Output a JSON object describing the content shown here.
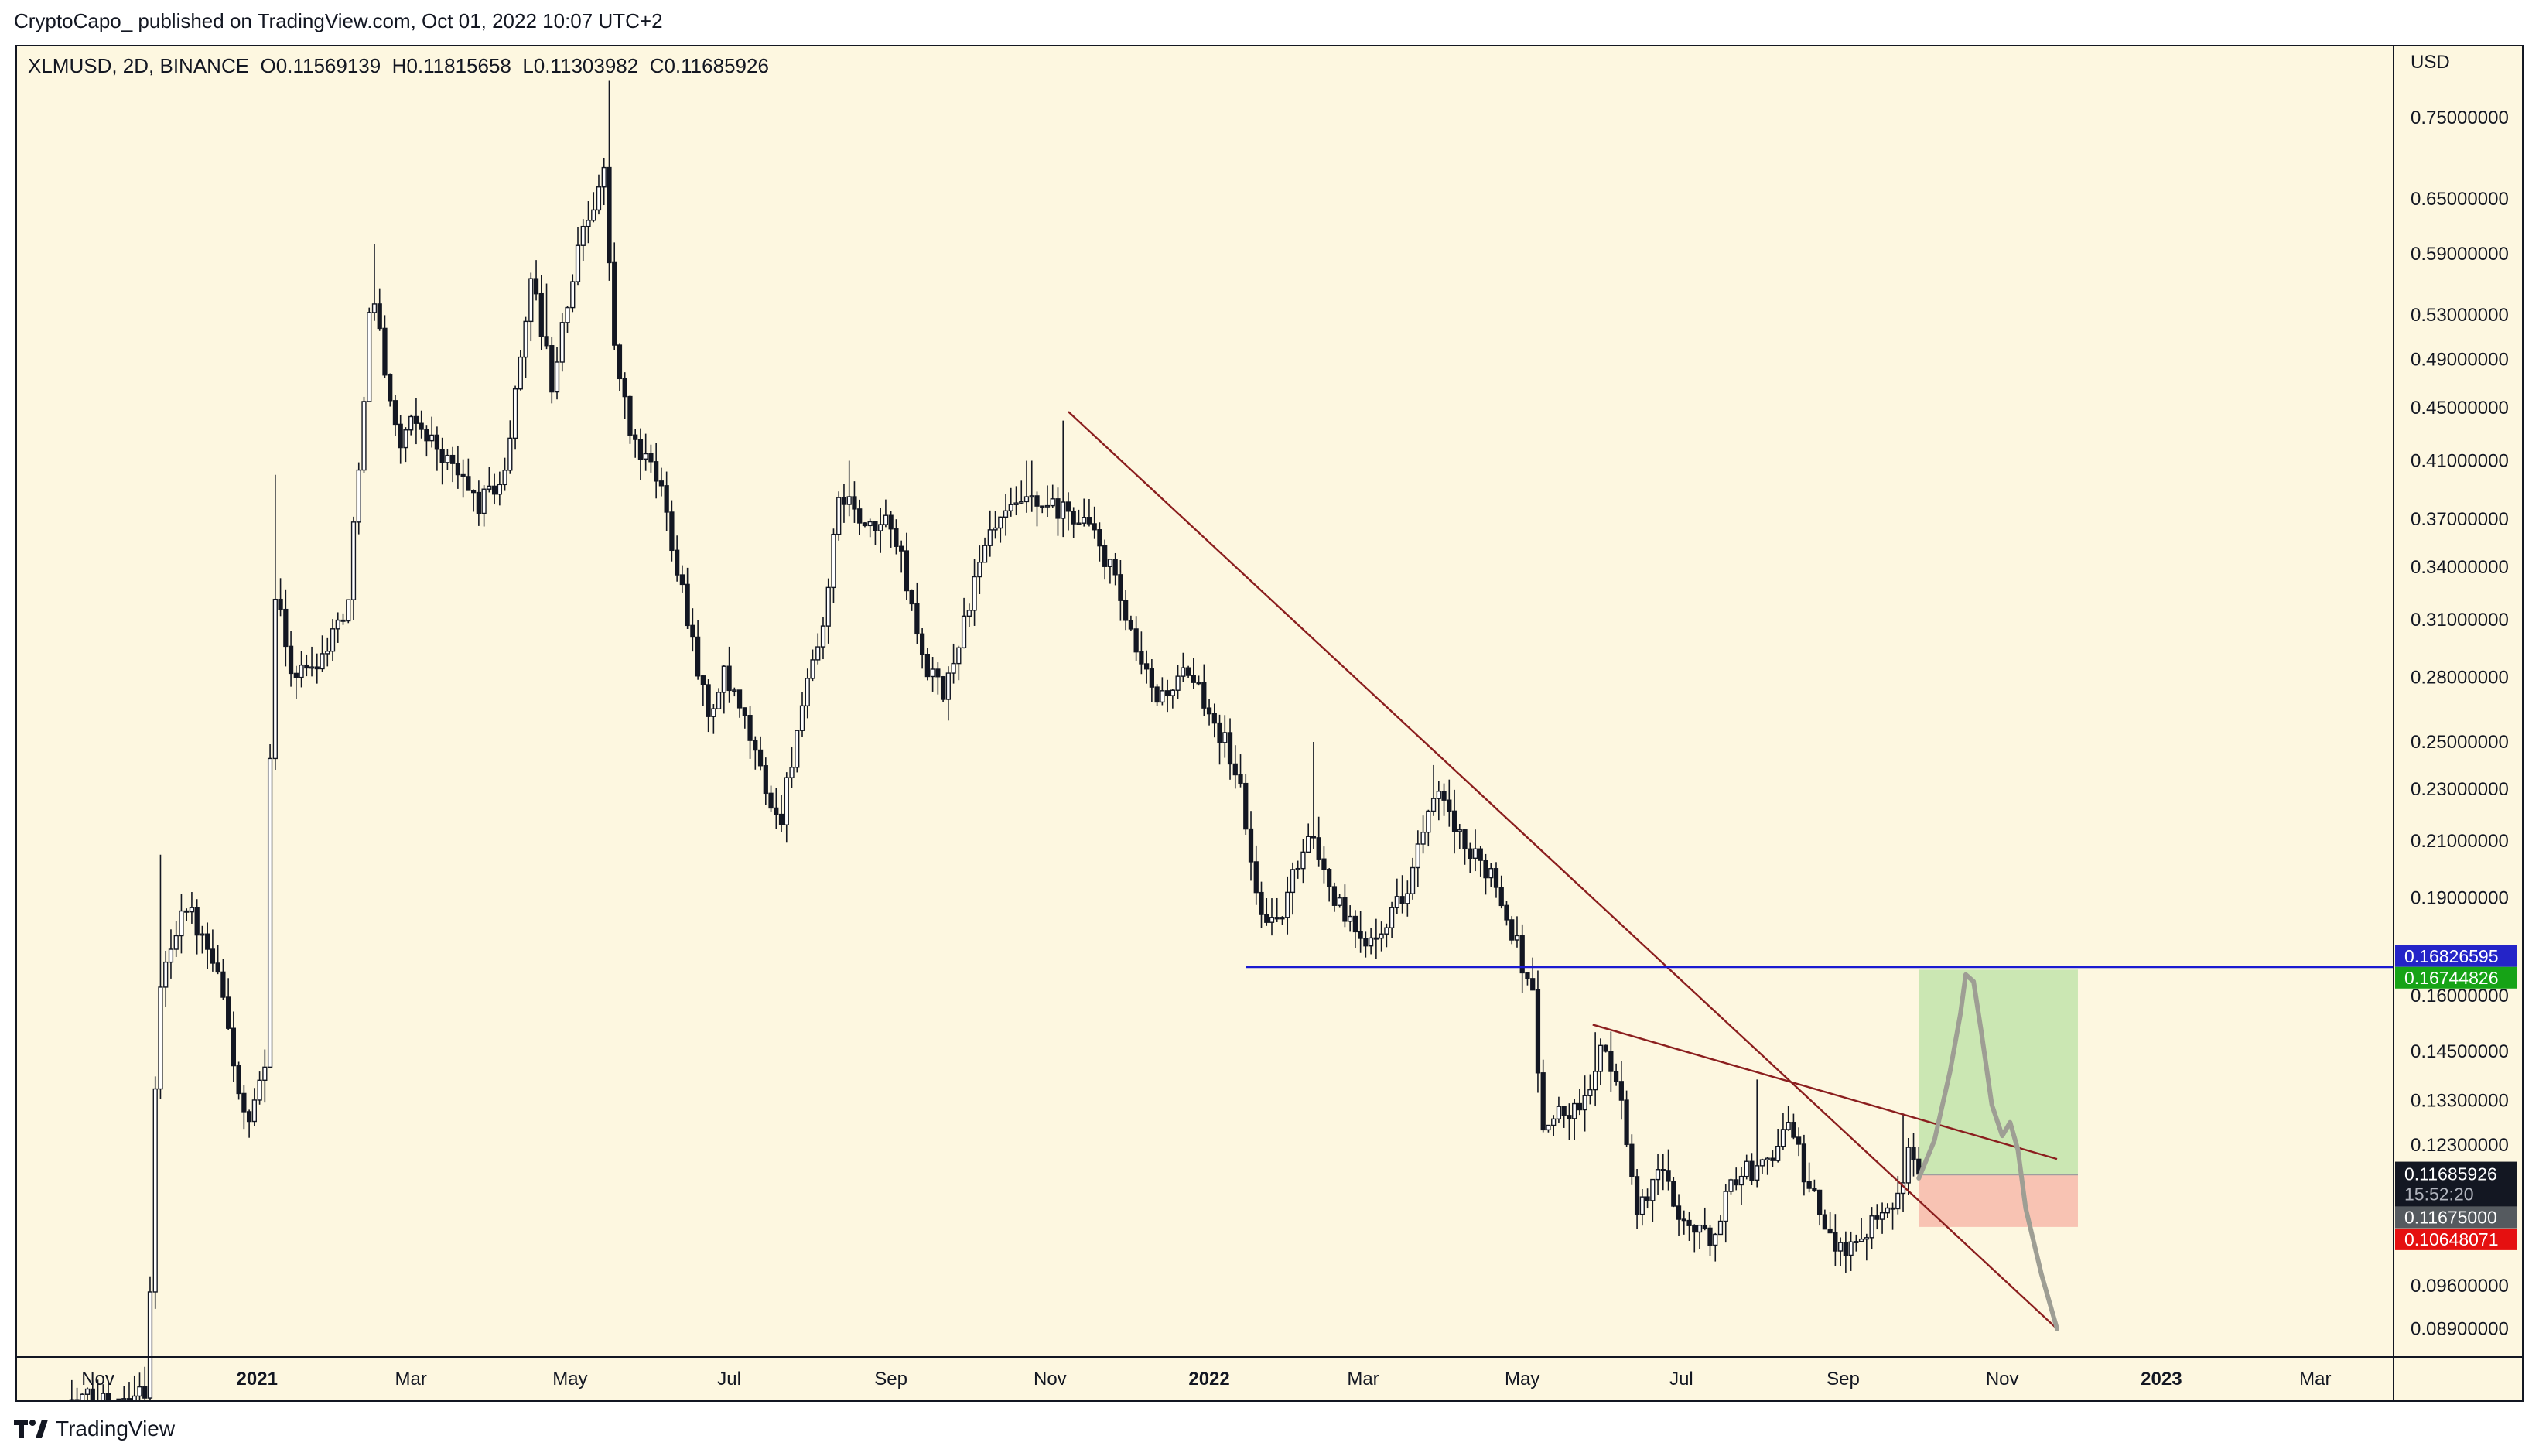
{
  "header": {
    "published_text": "CryptoCapo_ published on TradingView.com, Oct 01, 2022 10:07 UTC+2"
  },
  "symbol": {
    "name": "XLMUSD, 2D, BINANCE",
    "open_label": "O",
    "open": "0.11569139",
    "high_label": "H",
    "high": "0.11815658",
    "low_label": "L",
    "low": "0.11303982",
    "close_label": "C",
    "close": "0.11685926"
  },
  "footer": {
    "brand": "TradingView"
  },
  "colors": {
    "background": "#fdf7e0",
    "candle_up": "#ffffff",
    "candle_down": "#131722",
    "trendline": "#8b1e1e",
    "support": "#1a1ad1",
    "target_zone": "#c8e6b0",
    "stop_zone": "#f8c0b0",
    "projection": "#9e9e94"
  },
  "chart_data": {
    "type": "candlestick",
    "interval": "2D",
    "y_scale": "log",
    "y_unit_label": "USD",
    "ylim": [
      0.0847,
      0.85
    ],
    "xlim": [
      "2020-10-01",
      "2023-03-31"
    ],
    "y_ticks": [
      "0.75000000",
      "0.65000000",
      "0.59000000",
      "0.53000000",
      "0.49000000",
      "0.45000000",
      "0.41000000",
      "0.37000000",
      "0.34000000",
      "0.31000000",
      "0.28000000",
      "0.25000000",
      "0.23000000",
      "0.21000000",
      "0.19000000",
      "0.16000000",
      "0.14500000",
      "0.13300000",
      "0.12300000",
      "0.09600000",
      "0.08900000"
    ],
    "x_ticks": [
      {
        "label": "Nov",
        "date": "2020-11-01"
      },
      {
        "label": "2021",
        "date": "2021-01-01"
      },
      {
        "label": "Mar",
        "date": "2021-03-01"
      },
      {
        "label": "May",
        "date": "2021-05-01"
      },
      {
        "label": "Jul",
        "date": "2021-07-01"
      },
      {
        "label": "Sep",
        "date": "2021-09-01"
      },
      {
        "label": "Nov",
        "date": "2021-11-01"
      },
      {
        "label": "2022",
        "date": "2022-01-01"
      },
      {
        "label": "Mar",
        "date": "2022-03-01"
      },
      {
        "label": "May",
        "date": "2022-05-01"
      },
      {
        "label": "Jul",
        "date": "2022-07-01"
      },
      {
        "label": "Sep",
        "date": "2022-09-01"
      },
      {
        "label": "Nov",
        "date": "2022-11-01"
      },
      {
        "label": "2023",
        "date": "2023-01-01"
      },
      {
        "label": "Mar",
        "date": "2023-03-01"
      }
    ],
    "close_path": [
      [
        "2020-10-20",
        0.078
      ],
      [
        "2020-11-20",
        0.08
      ],
      [
        "2020-11-24",
        0.16
      ],
      [
        "2020-12-04",
        0.19
      ],
      [
        "2020-12-18",
        0.163
      ],
      [
        "2020-12-28",
        0.125
      ],
      [
        "2021-01-04",
        0.14
      ],
      [
        "2021-01-07",
        0.33
      ],
      [
        "2021-01-15",
        0.28
      ],
      [
        "2021-01-25",
        0.29
      ],
      [
        "2021-02-05",
        0.32
      ],
      [
        "2021-02-14",
        0.56
      ],
      [
        "2021-02-24",
        0.42
      ],
      [
        "2021-03-03",
        0.44
      ],
      [
        "2021-03-15",
        0.41
      ],
      [
        "2021-03-27",
        0.38
      ],
      [
        "2021-04-06",
        0.4
      ],
      [
        "2021-04-16",
        0.57
      ],
      [
        "2021-04-24",
        0.47
      ],
      [
        "2021-05-06",
        0.62
      ],
      [
        "2021-05-14",
        0.68
      ],
      [
        "2021-05-18",
        0.5
      ],
      [
        "2021-05-24",
        0.43
      ],
      [
        "2021-06-05",
        0.39
      ],
      [
        "2021-06-17",
        0.3
      ],
      [
        "2021-06-23",
        0.26
      ],
      [
        "2021-06-29",
        0.28
      ],
      [
        "2021-07-08",
        0.255
      ],
      [
        "2021-07-20",
        0.215
      ],
      [
        "2021-07-26",
        0.25
      ],
      [
        "2021-08-05",
        0.3
      ],
      [
        "2021-08-13",
        0.39
      ],
      [
        "2021-08-23",
        0.36
      ],
      [
        "2021-09-01",
        0.37
      ],
      [
        "2021-09-07",
        0.33
      ],
      [
        "2021-09-13",
        0.29
      ],
      [
        "2021-09-21",
        0.27
      ],
      [
        "2021-09-29",
        0.31
      ],
      [
        "2021-10-09",
        0.36
      ],
      [
        "2021-10-21",
        0.38
      ],
      [
        "2021-11-04",
        0.375
      ],
      [
        "2021-11-14",
        0.37
      ],
      [
        "2021-11-24",
        0.34
      ],
      [
        "2021-12-04",
        0.29
      ],
      [
        "2021-12-12",
        0.27
      ],
      [
        "2021-12-22",
        0.28
      ],
      [
        "2021-12-30",
        0.27
      ],
      [
        "2022-01-07",
        0.25
      ],
      [
        "2022-01-13",
        0.23
      ],
      [
        "2022-01-19",
        0.19
      ],
      [
        "2022-01-27",
        0.18
      ],
      [
        "2022-02-08",
        0.215
      ],
      [
        "2022-02-18",
        0.19
      ],
      [
        "2022-02-28",
        0.175
      ],
      [
        "2022-03-06",
        0.18
      ],
      [
        "2022-03-16",
        0.19
      ],
      [
        "2022-03-28",
        0.225
      ],
      [
        "2022-04-01",
        0.225
      ],
      [
        "2022-04-09",
        0.205
      ],
      [
        "2022-04-19",
        0.2
      ],
      [
        "2022-04-29",
        0.175
      ],
      [
        "2022-05-05",
        0.16
      ],
      [
        "2022-05-09",
        0.125
      ],
      [
        "2022-05-13",
        0.13
      ],
      [
        "2022-05-23",
        0.13
      ],
      [
        "2022-05-31",
        0.145
      ],
      [
        "2022-06-08",
        0.135
      ],
      [
        "2022-06-14",
        0.108
      ],
      [
        "2022-06-22",
        0.118
      ],
      [
        "2022-07-02",
        0.108
      ],
      [
        "2022-07-12",
        0.104
      ],
      [
        "2022-07-22",
        0.117
      ],
      [
        "2022-08-01",
        0.118
      ],
      [
        "2022-08-11",
        0.128
      ],
      [
        "2022-08-19",
        0.114
      ],
      [
        "2022-08-27",
        0.104
      ],
      [
        "2022-09-06",
        0.103
      ],
      [
        "2022-09-14",
        0.11
      ],
      [
        "2022-09-22",
        0.112
      ],
      [
        "2022-09-26",
        0.12
      ],
      [
        "2022-09-30",
        0.1169
      ]
    ],
    "peak_marks": [
      [
        "2020-11-25",
        0.205
      ],
      [
        "2021-01-08",
        0.4
      ],
      [
        "2021-02-15",
        0.6
      ],
      [
        "2021-04-22",
        0.56
      ],
      [
        "2021-05-16",
        0.8
      ],
      [
        "2021-08-16",
        0.41
      ],
      [
        "2021-10-24",
        0.41
      ],
      [
        "2021-11-06",
        0.44
      ],
      [
        "2022-02-10",
        0.25
      ],
      [
        "2022-03-28",
        0.24
      ],
      [
        "2022-05-29",
        0.15
      ],
      [
        "2022-07-30",
        0.138
      ],
      [
        "2022-09-24",
        0.13
      ]
    ],
    "current_price": 0.11685926,
    "current_price_label": "0.11685926",
    "countdown": "15:52:20",
    "trendlines": [
      {
        "name": "main-downtrend",
        "from": [
          "2021-11-08",
          0.447
        ],
        "to": [
          "2022-11-22",
          0.089
        ]
      },
      {
        "name": "secondary-downtrend",
        "from": [
          "2022-05-28",
          0.152
        ],
        "to": [
          "2022-11-22",
          0.12
        ]
      }
    ],
    "support_level": {
      "price": 0.16826595,
      "label": "0.16826595",
      "from": "2022-01-15"
    },
    "position": {
      "start": "2022-09-30",
      "end": "2022-11-30",
      "target": 0.16744826,
      "target_label": "0.16744826",
      "entry": 0.11675,
      "entry_label": "0.11675000",
      "stop": 0.10648071,
      "stop_label": "0.10648071"
    },
    "projection_path": [
      [
        "2022-09-30",
        0.116
      ],
      [
        "2022-10-06",
        0.124
      ],
      [
        "2022-10-12",
        0.14
      ],
      [
        "2022-10-16",
        0.155
      ],
      [
        "2022-10-18",
        0.166
      ],
      [
        "2022-10-21",
        0.164
      ],
      [
        "2022-10-24",
        0.15
      ],
      [
        "2022-10-28",
        0.132
      ],
      [
        "2022-11-01",
        0.125
      ],
      [
        "2022-11-04",
        0.128
      ],
      [
        "2022-11-07",
        0.122
      ],
      [
        "2022-11-10",
        0.11
      ],
      [
        "2022-11-16",
        0.098
      ],
      [
        "2022-11-22",
        0.089
      ]
    ]
  }
}
